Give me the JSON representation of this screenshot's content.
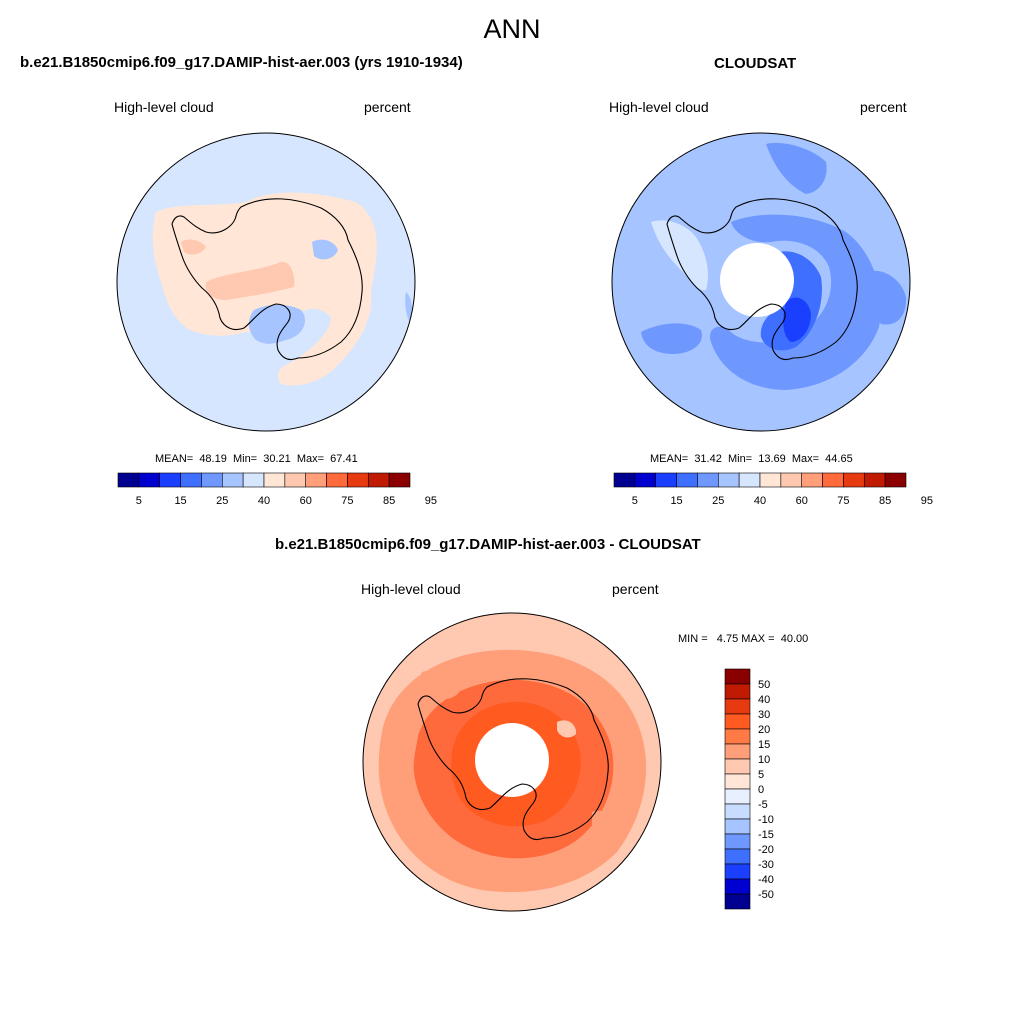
{
  "figure": {
    "title": "ANN"
  },
  "panels": [
    {
      "title": "b.e21.B1850cmip6.f09_g17.DAMIP-hist-aer.003 (yrs 1910-1934)",
      "left_label": "High-level cloud",
      "right_label": "percent",
      "stats": "MEAN=  48.19  Min=  30.21  Max=  67.41",
      "colorbar": {
        "colors": [
          "#000090",
          "#0000d0",
          "#1a3fff",
          "#3f6fff",
          "#6f98ff",
          "#a6c4ff",
          "#d6e6ff",
          "#ffe6d6",
          "#ffc8b0",
          "#ff9f7a",
          "#ff6a3d",
          "#e83a10",
          "#c01a00",
          "#8a0000"
        ],
        "tick_labels": [
          "5",
          "15",
          "25",
          "40",
          "60",
          "75",
          "85",
          "95"
        ]
      }
    },
    {
      "title": "CLOUDSAT",
      "left_label": "High-level cloud",
      "right_label": "percent",
      "stats": "MEAN=  31.42  Min=  13.69  Max=  44.65",
      "colorbar": {
        "colors": [
          "#000090",
          "#0000d0",
          "#1a3fff",
          "#3f6fff",
          "#6f98ff",
          "#a6c4ff",
          "#d6e6ff",
          "#ffe6d6",
          "#ffc8b0",
          "#ff9f7a",
          "#ff6a3d",
          "#e83a10",
          "#c01a00",
          "#8a0000"
        ],
        "tick_labels": [
          "5",
          "15",
          "25",
          "40",
          "60",
          "75",
          "85",
          "95"
        ]
      }
    },
    {
      "title": "b.e21.B1850cmip6.f09_g17.DAMIP-hist-aer.003 - CLOUDSAT",
      "left_label": "High-level cloud",
      "right_label": "percent",
      "stats": "MIN =   4.75 MAX =  40.00",
      "colorbar": {
        "colors": [
          "#8a0000",
          "#c01a00",
          "#e83a10",
          "#ff5a20",
          "#ff7a45",
          "#ff9f7a",
          "#ffc8b0",
          "#ffe6d6",
          "#e8f0ff",
          "#c8dcff",
          "#a6c4ff",
          "#6f98ff",
          "#3f6fff",
          "#1a3fff",
          "#0000d0",
          "#000090"
        ],
        "tick_labels": [
          "50",
          "40",
          "30",
          "20",
          "15",
          "10",
          "5",
          "0",
          "-5",
          "-10",
          "-15",
          "-20",
          "-30",
          "-40",
          "-50"
        ]
      }
    }
  ],
  "map_colors": {
    "light_blue": "#d6e6ff",
    "mid_blue": "#a6c4ff",
    "blue": "#6f98ff",
    "dark_blue": "#3f6fff",
    "deep_blue": "#1a3fff",
    "light_peach": "#ffe6d6",
    "peach": "#ffc8b0",
    "salmon": "#ff9f7a",
    "orange": "#ff6a3d",
    "red_orange": "#ff5a20"
  }
}
